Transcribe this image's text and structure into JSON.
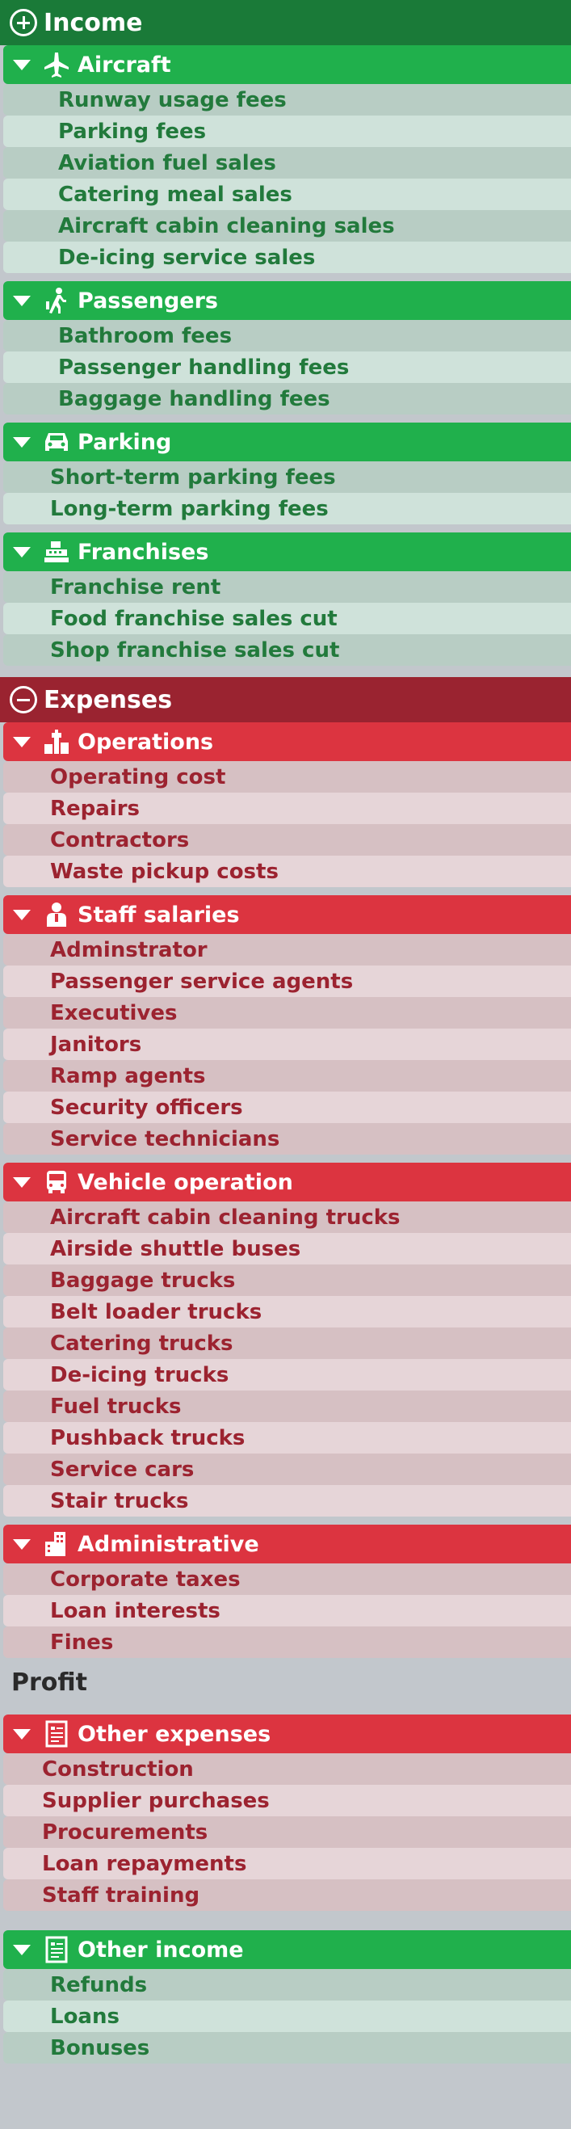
{
  "income": {
    "title": "Income",
    "categories": [
      {
        "label": "Aircraft",
        "items": [
          "Runway usage fees",
          "Parking fees",
          "Aviation fuel sales",
          "Catering meal sales",
          "Aircraft cabin cleaning sales",
          "De-icing service sales"
        ]
      },
      {
        "label": "Passengers",
        "items": [
          "Bathroom fees",
          "Passenger handling fees",
          "Baggage handling fees"
        ]
      },
      {
        "label": "Parking",
        "items": [
          "Short-term parking fees",
          "Long-term parking fees"
        ]
      },
      {
        "label": "Franchises",
        "items": [
          "Franchise rent",
          "Food franchise sales cut",
          "Shop franchise sales cut"
        ]
      }
    ]
  },
  "expenses": {
    "title": "Expenses",
    "categories": [
      {
        "label": "Operations",
        "items": [
          "Operating cost",
          "Repairs",
          "Contractors",
          "Waste pickup costs"
        ]
      },
      {
        "label": "Staff salaries",
        "items": [
          "Adminstrator",
          "Passenger service agents",
          "Executives",
          "Janitors",
          "Ramp agents",
          "Security officers",
          "Service technicians"
        ]
      },
      {
        "label": "Vehicle operation",
        "items": [
          "Aircraft cabin cleaning trucks",
          "Airside shuttle buses",
          "Baggage trucks",
          "Belt loader trucks",
          "Catering trucks",
          "De-icing trucks",
          "Fuel trucks",
          "Pushback trucks",
          "Service cars",
          "Stair trucks"
        ]
      },
      {
        "label": "Administrative",
        "items": [
          "Corporate taxes",
          "Loan interests",
          "Fines"
        ]
      }
    ]
  },
  "profit": {
    "title": "Profit",
    "other_expenses": {
      "label": "Other expenses",
      "items": [
        "Construction",
        "Supplier purchases",
        "Procurements",
        "Loan repayments",
        "Staff training"
      ]
    },
    "other_income": {
      "label": "Other income",
      "items": [
        "Refunds",
        "Loans",
        "Bonuses"
      ]
    }
  },
  "icons": {
    "income": "plus-circle-icon",
    "expenses": "minus-circle-icon",
    "aircraft": "airplane-icon",
    "passengers": "passenger-walking-icon",
    "parking": "car-icon",
    "franchises": "cash-register-icon",
    "operations": "control-tower-icon",
    "staff": "staff-person-icon",
    "vehicle": "bus-icon",
    "administrative": "office-building-icon",
    "other": "document-icon"
  },
  "colors": {
    "income_header": "#1a7a38",
    "income_category": "#20b04c",
    "expense_header": "#9a2330",
    "expense_category": "#dc3440",
    "background": "#c2c7cc"
  }
}
